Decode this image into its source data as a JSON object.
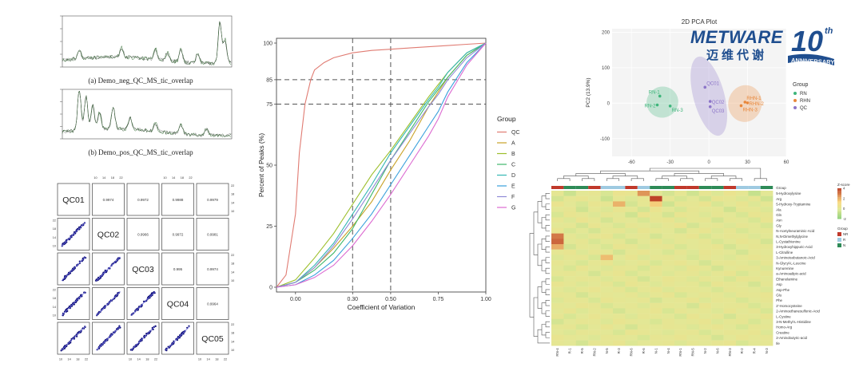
{
  "tic": {
    "neg_caption": "(a) Demo_neg_QC_MS_tic_overlap",
    "pos_caption": "(b) Demo_pos_QC_MS_tic_overlap"
  },
  "corr_matrix": {
    "samples": [
      "QC01",
      "QC02",
      "QC03",
      "QC04",
      "QC05"
    ],
    "values": {
      "QC01-QC02": "0.9974",
      "QC01-QC03": "0.9972",
      "QC01-QC04": "0.9988",
      "QC01-QC05": "0.9979",
      "QC02-QC03": "0.9966",
      "QC02-QC04": "0.9972",
      "QC02-QC05": "0.9981",
      "QC03-QC04": "0.995",
      "QC03-QC05": "0.9974",
      "QC04-QC05": "0.9964"
    },
    "tick_labels": [
      "10",
      "14",
      "18",
      "22"
    ]
  },
  "chart_data": [
    {
      "type": "line",
      "xlabel": "Coefficient of Variation",
      "ylabel": "Percent of Peaks (%)",
      "xlim": [
        -0.1,
        1.0
      ],
      "ylim": [
        0,
        100
      ],
      "x_ticks": [
        "0.00",
        "0.30",
        "0.50",
        "0.75",
        "1.00"
      ],
      "y_ticks": [
        "0",
        "25",
        "50",
        "75",
        "85",
        "100"
      ],
      "reference_lines": {
        "vertical": [
          0.3,
          0.5
        ],
        "horizontal": [
          75,
          85
        ]
      },
      "legend_title": "Group",
      "series": [
        {
          "name": "QC",
          "color": "#e07b72",
          "x": [
            -0.1,
            -0.05,
            0,
            0.02,
            0.05,
            0.08,
            0.1,
            0.15,
            0.2,
            0.3,
            0.4,
            0.5,
            0.6,
            0.7,
            0.8,
            0.9,
            1.0
          ],
          "y": [
            0,
            5,
            30,
            55,
            75,
            85,
            89,
            92,
            94,
            96,
            97,
            97.5,
            98,
            98.5,
            99,
            99.5,
            100
          ]
        },
        {
          "name": "A",
          "color": "#c9a227",
          "x": [
            -0.1,
            0,
            0.1,
            0.2,
            0.3,
            0.4,
            0.5,
            0.6,
            0.7,
            0.75,
            0.8,
            0.9,
            1.0
          ],
          "y": [
            0,
            2,
            8,
            16,
            25,
            35,
            48,
            60,
            74,
            80,
            86,
            95,
            100
          ]
        },
        {
          "name": "B",
          "color": "#9cbf2b",
          "x": [
            -0.1,
            0,
            0.1,
            0.2,
            0.3,
            0.4,
            0.5,
            0.6,
            0.7,
            0.75,
            0.8,
            0.9,
            1.0
          ],
          "y": [
            0,
            3,
            12,
            22,
            34,
            46,
            56,
            67,
            78,
            83,
            88,
            96,
            100
          ]
        },
        {
          "name": "C",
          "color": "#3fb86b",
          "x": [
            -0.1,
            0,
            0.1,
            0.2,
            0.3,
            0.4,
            0.5,
            0.6,
            0.7,
            0.75,
            0.8,
            0.9,
            1.0
          ],
          "y": [
            0,
            2,
            7,
            14,
            24,
            38,
            52,
            64,
            76,
            81,
            86,
            95,
            100
          ]
        },
        {
          "name": "D",
          "color": "#35b7b3",
          "x": [
            -0.1,
            0,
            0.1,
            0.2,
            0.3,
            0.4,
            0.5,
            0.6,
            0.7,
            0.75,
            0.8,
            0.9,
            1.0
          ],
          "y": [
            0,
            2,
            9,
            18,
            30,
            42,
            55,
            66,
            77,
            82,
            88,
            96,
            100
          ]
        },
        {
          "name": "E",
          "color": "#3aa0dc",
          "x": [
            -0.1,
            0,
            0.1,
            0.2,
            0.3,
            0.4,
            0.5,
            0.6,
            0.7,
            0.75,
            0.8,
            0.9,
            1.0
          ],
          "y": [
            0,
            1,
            5,
            11,
            20,
            30,
            42,
            54,
            66,
            72,
            80,
            92,
            100
          ]
        },
        {
          "name": "F",
          "color": "#8f8ad6",
          "x": [
            -0.1,
            0,
            0.1,
            0.2,
            0.3,
            0.4,
            0.5,
            0.6,
            0.7,
            0.75,
            0.8,
            0.9,
            1.0
          ],
          "y": [
            0,
            2,
            8,
            17,
            28,
            40,
            52,
            63,
            74,
            79,
            85,
            94,
            100
          ]
        },
        {
          "name": "G",
          "color": "#dc6bd1",
          "x": [
            -0.1,
            0,
            0.1,
            0.2,
            0.3,
            0.4,
            0.5,
            0.6,
            0.7,
            0.75,
            0.8,
            0.9,
            1.0
          ],
          "y": [
            0,
            1,
            4,
            9,
            17,
            27,
            38,
            50,
            62,
            69,
            78,
            91,
            100
          ]
        }
      ]
    },
    {
      "type": "scatter",
      "title": "2D PCA Plot",
      "ylabel": "PC2 (13.9%)",
      "xlim": [
        -75,
        60
      ],
      "ylim": [
        -150,
        210
      ],
      "x_ticks": [
        "-60",
        "-30",
        "0",
        "30",
        "60"
      ],
      "y_ticks": [
        "200",
        "100",
        "0",
        "-100"
      ],
      "legend_title": "Group",
      "series": [
        {
          "name": "RN",
          "color": "#3db57a",
          "points": [
            {
              "label": "RN-1",
              "x": -38,
              "y": 20
            },
            {
              "label": "RN-2",
              "x": -40,
              "y": -5
            },
            {
              "label": "RN-3",
              "x": -30,
              "y": -8
            }
          ]
        },
        {
          "name": "RHN",
          "color": "#e8873a",
          "points": [
            {
              "label": "RHN-1",
              "x": 28,
              "y": 3
            },
            {
              "label": "RHN-2",
              "x": 30,
              "y": 1
            },
            {
              "label": "RHN-3",
              "x": 25,
              "y": -7
            }
          ]
        },
        {
          "name": "QC",
          "color": "#8c75c8",
          "points": [
            {
              "label": "QC01",
              "x": -3,
              "y": 45
            },
            {
              "label": "QC02",
              "x": 1,
              "y": 5
            },
            {
              "label": "QC03",
              "x": 1,
              "y": -10
            }
          ]
        }
      ]
    },
    {
      "type": "heatmap",
      "columns": [
        "RN-4",
        "R-1",
        "R-5",
        "RN-2",
        "N-5",
        "R-3",
        "RN-6",
        "R-6",
        "N-1",
        "N-4",
        "RN-1",
        "RN-5",
        "N-2",
        "N-6",
        "RN-3",
        "R-2",
        "R-4",
        "N-3"
      ],
      "column_groups": [
        "RN",
        "N",
        "N",
        "RN",
        "R",
        "R",
        "RN",
        "R",
        "N",
        "N",
        "RN",
        "RN",
        "N",
        "N",
        "RN",
        "R",
        "R",
        "N"
      ],
      "rows": [
        "5-Hydroxylysine",
        "Arg",
        "5-Hydroxy-Tryptamine",
        "Ala",
        "Gln",
        "Asn",
        "Gly",
        "N-Acetylneuraminic-Acid",
        "N,N-Dimethylglycine",
        "L-Cystathionine",
        "3-Hydroxyhippuric-Acid",
        "L-Citrulline",
        "3-Aminoisobutanoic-Acid",
        "N-Glycyl-L-Leucine",
        "Kynurenine",
        "a-Aminoadipic-acid",
        "Ethanolamine",
        "Asp",
        "Asp-Phe",
        "Glu",
        "Phe",
        "2'-Homocysteine",
        "2-Aminoethanesulfonic-Acid",
        "L-Cystine",
        "3-N-Methyl-L-Histidine",
        "Homo-Arg",
        "Creatine",
        "2-Aminobutyric-acid",
        "Ile"
      ],
      "legend_group_title": "Group",
      "legend_groups": [
        {
          "name": "NR",
          "color": "#c0392b"
        },
        {
          "name": "R",
          "color": "#9ecae1"
        },
        {
          "name": "N",
          "color": "#2e8b57"
        }
      ],
      "zscore_title": "Z-score",
      "zscore_ticks": [
        "4",
        "2",
        "0",
        "-2"
      ],
      "values": [
        [
          0.2,
          -0.5,
          0.1,
          0.3,
          -0.2,
          0.5,
          0.4,
          2.6,
          0.1,
          -0.3,
          0.2,
          -0.4,
          0.3,
          -0.1,
          0.5,
          0.2,
          -0.6,
          0.1
        ],
        [
          -0.3,
          0.2,
          0.4,
          0.1,
          -0.5,
          0.2,
          -0.1,
          0.3,
          4.2,
          0.2,
          -0.2,
          0.1,
          -0.3,
          0.4,
          0.2,
          -0.1,
          0.3,
          -0.4
        ],
        [
          0.5,
          0.1,
          -0.2,
          0.4,
          0.3,
          2.1,
          -0.3,
          0.2,
          1.6,
          -0.4,
          0.3,
          0.2,
          0.5,
          -0.2,
          0.1,
          0.4,
          -0.1,
          0.2
        ],
        [
          0.1,
          0.3,
          -0.4,
          0.2,
          -0.1,
          0.4,
          0.2,
          -0.3,
          0.5,
          0.1,
          -0.2,
          0.3,
          0.1,
          0.2,
          -0.4,
          0.3,
          0.2,
          -0.1
        ],
        [
          -0.2,
          0.4,
          0.2,
          -0.1,
          0.3,
          0.1,
          -0.4,
          0.5,
          0.2,
          -0.3,
          0.4,
          0.2,
          -0.1,
          0.3,
          0.1,
          -0.2,
          0.4,
          0.3
        ],
        [
          0.3,
          -0.1,
          0.5,
          0.2,
          -0.3,
          0.2,
          0.1,
          -0.2,
          0.3,
          0.4,
          -0.1,
          0.2,
          0.3,
          -0.3,
          0.2,
          0.1,
          -0.2,
          0.4
        ],
        [
          0.1,
          0.2,
          -0.3,
          0.4,
          0.1,
          -0.2,
          0.3,
          0.1,
          -0.1,
          0.2,
          0.5,
          -0.3,
          0.1,
          0.2,
          -0.1,
          0.3,
          0.1,
          -0.2
        ],
        [
          0.4,
          -0.2,
          0.1,
          -0.3,
          0.2,
          0.3,
          -0.1,
          0.4,
          0.2,
          0.1,
          -0.3,
          0.2,
          0.4,
          -0.1,
          0.3,
          -0.2,
          0.1,
          0.2
        ],
        [
          3.1,
          0.2,
          -0.1,
          0.3,
          0.4,
          -0.2,
          0.1,
          0.2,
          -0.3,
          0.1,
          0.2,
          0.4,
          -0.2,
          0.1,
          0.3,
          0.2,
          -0.1,
          0.1
        ],
        [
          3.4,
          0.1,
          0.3,
          -0.2,
          0.1,
          0.2,
          -0.3,
          0.1,
          0.4,
          -0.1,
          0.2,
          0.1,
          0.3,
          -0.2,
          0.1,
          0.4,
          0.2,
          -0.3
        ],
        [
          2.2,
          -0.3,
          0.2,
          0.1,
          -0.2,
          0.4,
          0.3,
          -0.1,
          0.2,
          0.3,
          -0.2,
          0.1,
          0.2,
          0.4,
          -0.3,
          0.1,
          0.3,
          0.2
        ],
        [
          0.2,
          0.4,
          -0.1,
          0.3,
          0.2,
          -0.3,
          0.2,
          0.4,
          0.1,
          -0.2,
          0.3,
          -0.1,
          0.4,
          0.2,
          0.1,
          -0.3,
          0.2,
          0.1
        ],
        [
          -0.1,
          0.2,
          0.3,
          -0.2,
          1.9,
          0.1,
          0.4,
          -0.1,
          0.2,
          0.3,
          0.1,
          -0.2,
          0.3,
          0.1,
          -0.1,
          0.2,
          0.4,
          0.2
        ],
        [
          0.3,
          0.1,
          -0.2,
          0.2,
          0.4,
          -0.1,
          0.1,
          0.3,
          -0.2,
          0.2,
          0.4,
          0.1,
          -0.3,
          0.2,
          0.3,
          0.1,
          -0.1,
          0.3
        ],
        [
          0.1,
          -0.2,
          0.4,
          0.1,
          -0.1,
          0.3,
          0.2,
          -0.2,
          0.3,
          0.1,
          -0.1,
          0.4,
          0.2,
          -0.3,
          0.1,
          0.3,
          0.2,
          -0.1
        ],
        [
          0.2,
          0.3,
          0.1,
          -0.3,
          0.2,
          0.4,
          -0.2,
          0.1,
          0.3,
          -0.1,
          0.2,
          0.3,
          -0.1,
          0.2,
          0.4,
          -0.2,
          0.1,
          0.3
        ],
        [
          -0.2,
          0.1,
          0.3,
          0.2,
          -0.1,
          0.2,
          0.3,
          -0.3,
          0.1,
          0.4,
          0.2,
          -0.1,
          0.3,
          0.1,
          -0.2,
          0.4,
          0.3,
          0.1
        ],
        [
          0.4,
          0.2,
          -0.1,
          0.1,
          0.3,
          -0.2,
          0.4,
          0.2,
          -0.1,
          0.3,
          0.1,
          0.2,
          -0.2,
          0.4,
          0.2,
          0.1,
          -0.3,
          0.2
        ],
        [
          0.1,
          -0.1,
          0.2,
          0.4,
          0.1,
          0.3,
          -0.2,
          0.2,
          0.4,
          -0.1,
          0.3,
          0.2,
          0.1,
          -0.2,
          0.3,
          0.2,
          0.1,
          -0.1
        ],
        [
          0.3,
          0.2,
          -0.3,
          0.1,
          0.2,
          0.1,
          0.3,
          -0.1,
          0.2,
          0.4,
          -0.2,
          0.1,
          0.3,
          0.2,
          -0.1,
          0.3,
          0.2,
          0.4
        ],
        [
          -0.1,
          0.3,
          0.2,
          -0.2,
          0.4,
          0.2,
          0.1,
          0.3,
          -0.3,
          0.1,
          0.2,
          0.4,
          -0.1,
          0.3,
          0.2,
          -0.2,
          0.1,
          0.3
        ],
        [
          0.2,
          0.1,
          0.4,
          0.3,
          -0.2,
          0.1,
          0.2,
          -0.1,
          0.3,
          0.2,
          0.1,
          -0.3,
          0.4,
          0.1,
          0.2,
          0.3,
          -0.2,
          0.1
        ],
        [
          0.1,
          0.4,
          -0.1,
          0.2,
          0.3,
          -0.3,
          0.1,
          0.2,
          0.4,
          -0.2,
          0.3,
          0.1,
          0.2,
          -0.1,
          0.4,
          0.1,
          0.3,
          -0.2
        ],
        [
          0.3,
          -0.2,
          0.1,
          0.4,
          0.1,
          0.2,
          -0.1,
          0.3,
          0.2,
          0.1,
          -0.2,
          0.4,
          0.1,
          0.3,
          -0.3,
          0.2,
          0.1,
          0.4
        ],
        [
          -0.3,
          0.1,
          0.3,
          0.2,
          -0.1,
          0.4,
          0.2,
          0.1,
          -0.2,
          0.3,
          0.1,
          0.2,
          0.4,
          -0.1,
          0.2,
          0.3,
          -0.2,
          0.1
        ],
        [
          0.2,
          0.3,
          -0.2,
          0.1,
          0.4,
          0.1,
          -0.3,
          0.2,
          0.1,
          0.3,
          0.2,
          -0.1,
          0.2,
          0.4,
          0.1,
          -0.2,
          0.3,
          0.2
        ],
        [
          0.1,
          -0.1,
          0.3,
          0.2,
          0.1,
          -0.2,
          0.4,
          0.3,
          0.1,
          -0.1,
          0.2,
          0.3,
          -0.2,
          0.1,
          0.3,
          0.2,
          0.4,
          -0.1
        ],
        [
          0.4,
          0.2,
          0.1,
          -0.1,
          0.3,
          0.2,
          0.1,
          -0.2,
          0.3,
          0.2,
          0.4,
          0.1,
          0.2,
          -0.3,
          0.1,
          0.4,
          0.2,
          0.3
        ],
        [
          0.2,
          0.1,
          -0.3,
          0.3,
          0.2,
          0.4,
          -0.1,
          0.1,
          0.2,
          0.3,
          -0.1,
          0.2,
          0.1,
          0.3,
          0.4,
          -0.2,
          0.1,
          0.2
        ]
      ]
    }
  ],
  "logo": {
    "brand": "METWARE",
    "chinese": "迈维代谢",
    "anniversary_number": "10",
    "anniversary_suffix": "th",
    "anniversary_word": "ANNIVERSARY"
  }
}
